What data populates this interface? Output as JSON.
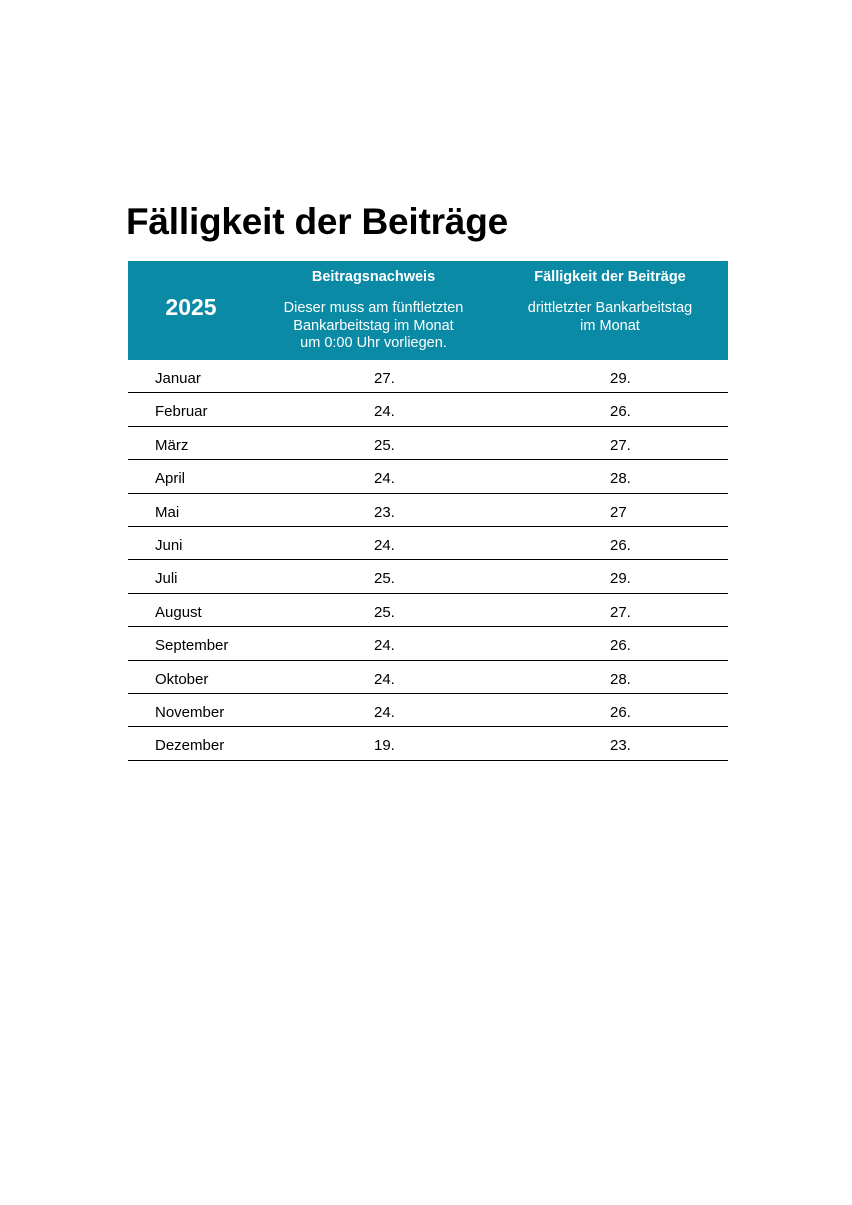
{
  "page": {
    "title": "Fälligkeit der Beiträge"
  },
  "table": {
    "year": "2025",
    "columns": [
      {
        "heading": "Beitragsnachweis",
        "description_lines": [
          "Dieser muss am fünftletzten",
          "Bankarbeitstag im Monat",
          "um 0:00 Uhr vorliegen."
        ]
      },
      {
        "heading": "Fälligkeit der Beiträge",
        "description_lines": [
          "drittletzter Bankarbeitstag",
          "im Monat"
        ]
      }
    ],
    "rows": [
      {
        "month": "Januar",
        "beitragsnachweis": "27.",
        "faelligkeit": "29."
      },
      {
        "month": "Februar",
        "beitragsnachweis": "24.",
        "faelligkeit": "26."
      },
      {
        "month": "März",
        "beitragsnachweis": "25.",
        "faelligkeit": "27."
      },
      {
        "month": "April",
        "beitragsnachweis": "24.",
        "faelligkeit": "28."
      },
      {
        "month": "Mai",
        "beitragsnachweis": "23.",
        "faelligkeit": "27"
      },
      {
        "month": "Juni",
        "beitragsnachweis": "24.",
        "faelligkeit": "26."
      },
      {
        "month": "Juli",
        "beitragsnachweis": "25.",
        "faelligkeit": "29."
      },
      {
        "month": "August",
        "beitragsnachweis": "25.",
        "faelligkeit": "27."
      },
      {
        "month": "September",
        "beitragsnachweis": "24.",
        "faelligkeit": "26."
      },
      {
        "month": "Oktober",
        "beitragsnachweis": "24.",
        "faelligkeit": "28."
      },
      {
        "month": "November",
        "beitragsnachweis": "24.",
        "faelligkeit": "26."
      },
      {
        "month": "Dezember",
        "beitragsnachweis": "19.",
        "faelligkeit": "23."
      }
    ]
  },
  "colors": {
    "header_bg": "#0b8aa6",
    "header_text": "#ffffff",
    "row_divider": "#000000"
  }
}
